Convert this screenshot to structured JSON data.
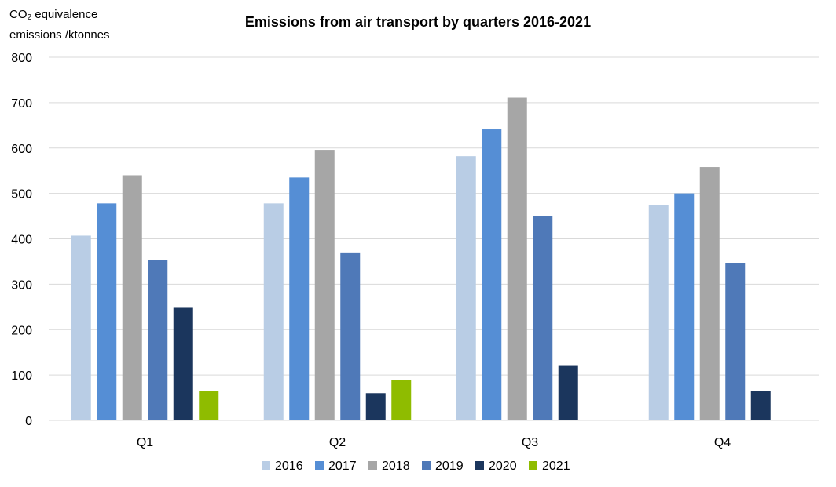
{
  "chart_data": {
    "type": "bar",
    "title": "Emissions from air transport by quarters 2016-2021",
    "ylabel_line1_prefix": "CO",
    "ylabel_line1_sub": "2",
    "ylabel_line1_suffix": " equivalence",
    "ylabel_line2": "emissions /ktonnes",
    "xlabel": "",
    "ylim": [
      0,
      800
    ],
    "yticks": [
      0,
      100,
      200,
      300,
      400,
      500,
      600,
      700,
      800
    ],
    "grid": true,
    "legend_position": "bottom",
    "categories": [
      "Q1",
      "Q2",
      "Q3",
      "Q4"
    ],
    "series": [
      {
        "name": "2016",
        "color": "#b9cde5",
        "values": [
          407,
          478,
          582,
          475
        ]
      },
      {
        "name": "2017",
        "color": "#558ed5",
        "values": [
          478,
          535,
          641,
          500
        ]
      },
      {
        "name": "2018",
        "color": "#a6a6a6",
        "values": [
          540,
          596,
          711,
          558
        ]
      },
      {
        "name": "2019",
        "color": "#4f79b8",
        "values": [
          353,
          370,
          450,
          346
        ]
      },
      {
        "name": "2020",
        "color": "#1b365d",
        "values": [
          248,
          60,
          120,
          65
        ]
      },
      {
        "name": "2021",
        "color": "#8fbc00",
        "values": [
          64,
          89,
          null,
          null
        ]
      }
    ]
  }
}
